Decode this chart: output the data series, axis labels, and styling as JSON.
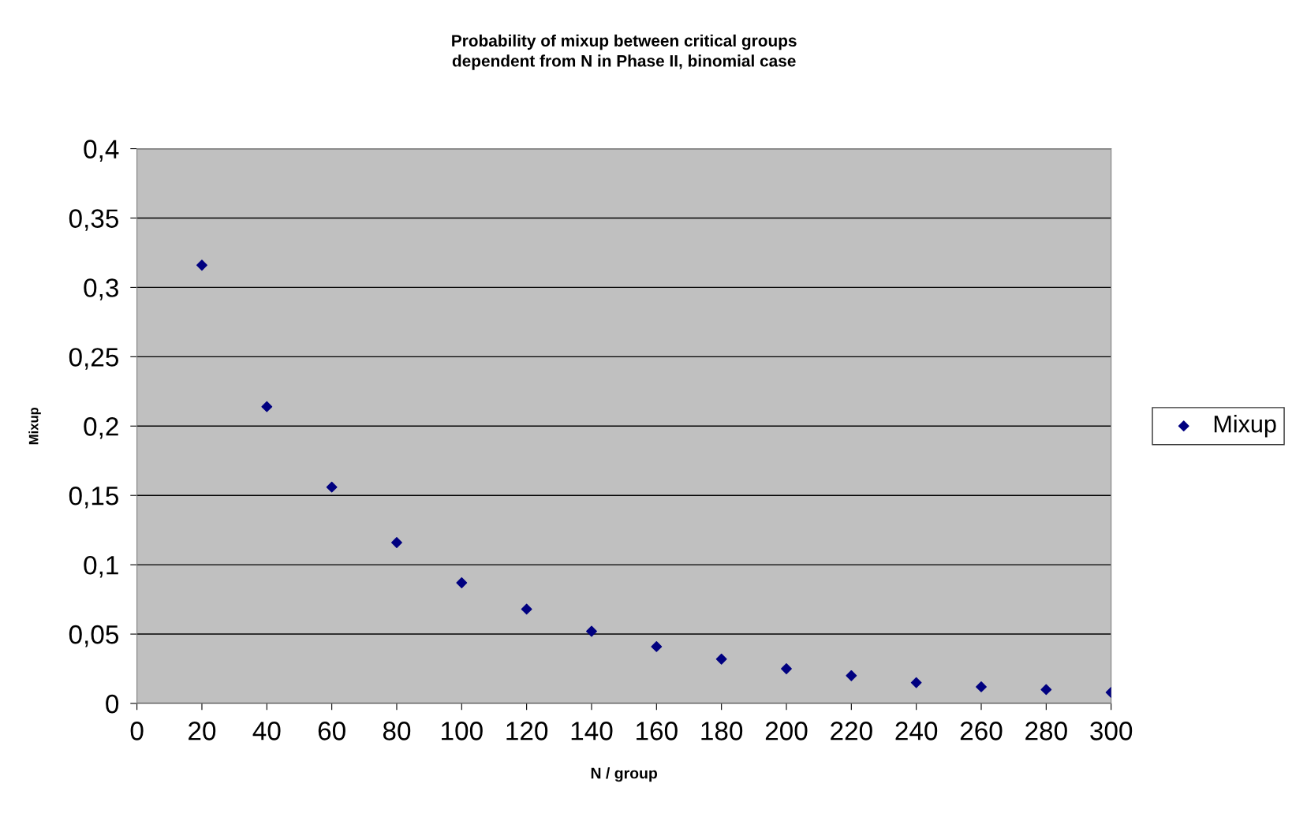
{
  "chart_data": {
    "type": "scatter",
    "title": "Probability of mixup between critical groups\ndependent from N in Phase II, binomial case",
    "xlabel": "N / group",
    "ylabel": "Mixup",
    "x": [
      20,
      40,
      60,
      80,
      100,
      120,
      140,
      160,
      180,
      200,
      220,
      240,
      260,
      280,
      300
    ],
    "series": [
      {
        "name": "Mixup",
        "color": "#000080",
        "values": [
          0.316,
          0.214,
          0.156,
          0.116,
          0.087,
          0.068,
          0.052,
          0.041,
          0.032,
          0.025,
          0.02,
          0.015,
          0.012,
          0.01,
          0.008
        ]
      }
    ],
    "xlim": [
      0,
      300
    ],
    "xticks": [
      0,
      20,
      40,
      60,
      80,
      100,
      120,
      140,
      160,
      180,
      200,
      220,
      240,
      260,
      280,
      300
    ],
    "ylim": [
      0,
      0.4
    ],
    "yticks": [
      {
        "value": 0,
        "label": "0"
      },
      {
        "value": 0.05,
        "label": "0,05"
      },
      {
        "value": 0.1,
        "label": "0,1"
      },
      {
        "value": 0.15,
        "label": "0,15"
      },
      {
        "value": 0.2,
        "label": "0,2"
      },
      {
        "value": 0.25,
        "label": "0,25"
      },
      {
        "value": 0.3,
        "label": "0,3"
      },
      {
        "value": 0.35,
        "label": "0,35"
      },
      {
        "value": 0.4,
        "label": "0,4"
      }
    ],
    "grid": "y",
    "legend": "right",
    "marker": "diamond"
  }
}
